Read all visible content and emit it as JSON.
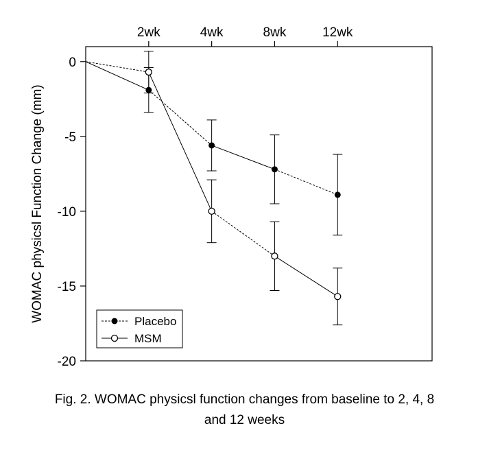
{
  "chart_data": {
    "type": "line",
    "ylabel": "WOMAC physicsl Function  Change (mm)",
    "x_ticks": [
      "2wk",
      "4wk",
      "8wk",
      "12wk"
    ],
    "ylim": [
      -20,
      1
    ],
    "y_ticks": [
      0,
      -5,
      -10,
      -15,
      -20
    ],
    "x_index_range": [
      -1,
      4.5
    ],
    "series": [
      {
        "name": "Placebo",
        "marker": "filled-circle",
        "x": [
          -1,
          0,
          1,
          2,
          3
        ],
        "values": [
          0,
          -1.9,
          -5.6,
          -7.2,
          -8.9
        ],
        "error": [
          null,
          1.5,
          1.7,
          2.3,
          2.7
        ]
      },
      {
        "name": "MSM",
        "marker": "open-circle",
        "x": [
          -1,
          0,
          1,
          2,
          3
        ],
        "values": [
          0,
          -0.7,
          -10.0,
          -13.0,
          -15.7
        ],
        "error": [
          null,
          1.4,
          2.1,
          2.3,
          1.9
        ]
      }
    ],
    "segment_styles": [
      "solid",
      "dashed",
      "solid",
      "dashed",
      "solid"
    ],
    "legend": {
      "position": "bottom-left",
      "entries": [
        "Placebo",
        "MSM"
      ]
    },
    "colors": {
      "line": "#000000",
      "background": "#ffffff"
    }
  },
  "caption": {
    "line1": "Fig. 2. WOMAC physicsl function changes from baseline to 2, 4, 8",
    "line2": "and 12 weeks"
  }
}
